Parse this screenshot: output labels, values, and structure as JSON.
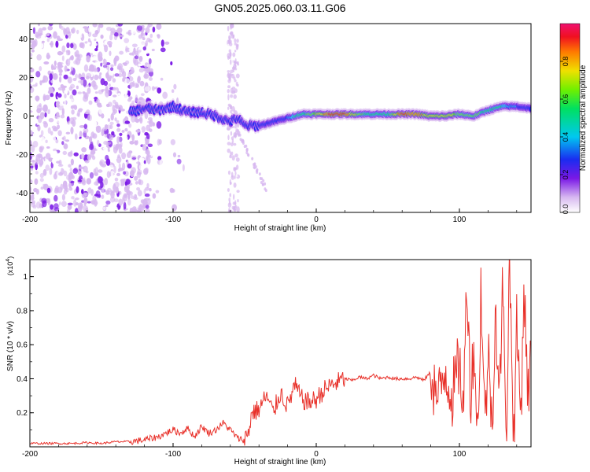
{
  "title": "GN05.2025.060.03.11.G06",
  "colors": {
    "series": "#e8312a",
    "axis": "#000000",
    "background": "#ffffff"
  },
  "chart_data": [
    {
      "type": "heatmap",
      "title": "GN05.2025.060.03.11.G06",
      "xlabel": "Height of straight line (km)",
      "ylabel": "Frequency (Hz)",
      "xlim": [
        -200,
        150
      ],
      "ylim": [
        -50,
        48
      ],
      "xticks": [
        -200,
        -100,
        0,
        100
      ],
      "yticks": [
        -40,
        -20,
        0,
        20,
        40
      ],
      "xtick_labels": [
        "-200",
        "-100",
        "0",
        "100"
      ],
      "ytick_labels": [
        "-40",
        "-20",
        "0",
        "20",
        "40"
      ],
      "colorbar": {
        "label": "Normalized spectral amplitude",
        "range": [
          0,
          1
        ],
        "ticks": [
          0.0,
          0.2,
          0.4,
          0.6,
          0.8
        ],
        "tick_labels": [
          "0.0",
          "0.2",
          "0.4",
          "0.6",
          "0.8"
        ]
      },
      "ridge": {
        "description": "dominant frequency track vs height",
        "x": [
          -130,
          -120,
          -110,
          -100,
          -90,
          -80,
          -70,
          -60,
          -55,
          -50,
          -40,
          -30,
          -20,
          -10,
          0,
          10,
          20,
          30,
          40,
          50,
          60,
          70,
          80,
          90,
          100,
          110,
          120,
          130,
          140,
          150
        ],
        "y": [
          2,
          4,
          3,
          5,
          2,
          2,
          0,
          -3,
          -1,
          -5,
          -5,
          -3,
          -1,
          1,
          1,
          1,
          1,
          1,
          1,
          1,
          1,
          1,
          0,
          0,
          1,
          0,
          3,
          5,
          5,
          4
        ],
        "amplitude": [
          0.35,
          0.4,
          0.4,
          0.45,
          0.45,
          0.5,
          0.4,
          0.35,
          0.3,
          0.35,
          0.35,
          0.4,
          0.5,
          0.6,
          0.75,
          0.95,
          0.95,
          0.7,
          0.55,
          0.6,
          0.95,
          0.9,
          0.8,
          0.85,
          0.7,
          0.7,
          0.6,
          0.55,
          0.5,
          0.45
        ]
      }
    },
    {
      "type": "line",
      "xlabel": "Height of straight line (km)",
      "ylabel": "SNR (10 * v/v)",
      "scale_label": "(x10",
      "scale_exp": "4",
      "scale_close": ")",
      "xlim": [
        -200,
        150
      ],
      "ylim": [
        0,
        1.1
      ],
      "xticks": [
        -200,
        -100,
        0,
        100
      ],
      "yticks": [
        0.2,
        0.4,
        0.6,
        0.8,
        1
      ],
      "xtick_labels": [
        "-200",
        "-100",
        "0",
        "100"
      ],
      "ytick_labels": [
        "0.2",
        "0.4",
        "0.6",
        "0.8",
        "1"
      ],
      "series": [
        {
          "name": "SNR",
          "x": [
            -200,
            -190,
            -180,
            -170,
            -160,
            -150,
            -140,
            -130,
            -120,
            -115,
            -110,
            -105,
            -100,
            -95,
            -90,
            -85,
            -80,
            -75,
            -70,
            -65,
            -60,
            -55,
            -50,
            -47,
            -45,
            -40,
            -35,
            -30,
            -25,
            -20,
            -15,
            -10,
            -5,
            0,
            5,
            10,
            15,
            20,
            25,
            30,
            35,
            40,
            45,
            50,
            55,
            60,
            65,
            70,
            75,
            80,
            85,
            90,
            95,
            100,
            103,
            105,
            108,
            110,
            113,
            115,
            118,
            120,
            123,
            125,
            128,
            130,
            133,
            135,
            138,
            140,
            143,
            145,
            148,
            150
          ],
          "values": [
            0.02,
            0.02,
            0.02,
            0.02,
            0.025,
            0.02,
            0.03,
            0.03,
            0.04,
            0.05,
            0.06,
            0.08,
            0.1,
            0.08,
            0.11,
            0.06,
            0.12,
            0.08,
            0.1,
            0.14,
            0.1,
            0.05,
            0.04,
            0.1,
            0.2,
            0.22,
            0.3,
            0.2,
            0.32,
            0.24,
            0.36,
            0.28,
            0.26,
            0.28,
            0.33,
            0.36,
            0.38,
            0.4,
            0.39,
            0.41,
            0.4,
            0.42,
            0.4,
            0.41,
            0.4,
            0.4,
            0.4,
            0.41,
            0.39,
            0.44,
            0.26,
            0.46,
            0.3,
            0.5,
            0.2,
            1.05,
            0.28,
            0.62,
            0.04,
            0.95,
            0.1,
            0.58,
            0.12,
            0.85,
            0.25,
            0.92,
            0.15,
            1.1,
            0.05,
            0.7,
            0.2,
            0.95,
            0.3,
            0.6
          ]
        }
      ]
    }
  ]
}
